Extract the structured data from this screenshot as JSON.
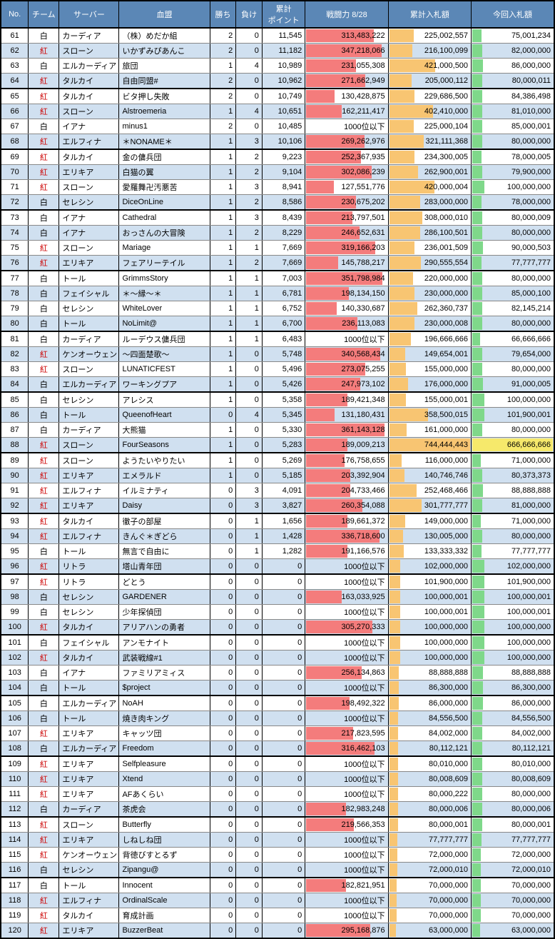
{
  "headers": [
    "No.",
    "チーム",
    "サーバー",
    "血盟",
    "勝ち",
    "負け",
    "累計\nポイント",
    "戦闘力 8/28",
    "累計入札額",
    "今回入札額"
  ],
  "teams": {
    "white": "白",
    "red": "紅"
  },
  "colors": {
    "header_bg": "#5b87b6",
    "even_row": "#d0e0f0",
    "odd_row": "#ffffff",
    "bp_bar": "#f47c7c",
    "cum_bar": "#f8c572",
    "cur_bar": "#7fd88a",
    "cur_hi": "#f6e96b",
    "team_red": "#c00"
  },
  "scales": {
    "bp_max": 380000000,
    "cum_max": 760000000,
    "cur_max": 680000000
  },
  "rows": [
    {
      "no": 61,
      "t": "white",
      "srv": "カーディア",
      "clan": "（株）めだか組",
      "w": 2,
      "l": 0,
      "pt": "11,545",
      "bp": "313,483,222",
      "bpv": 313483222,
      "cum": "225,002,557",
      "cumv": 225002557,
      "cur": "75,001,234",
      "curv": 75001234
    },
    {
      "no": 62,
      "t": "red",
      "srv": "スローン",
      "clan": "いかずみぴあんこ",
      "w": 2,
      "l": 0,
      "pt": "11,182",
      "bp": "347,218,066",
      "bpv": 347218066,
      "cum": "216,100,099",
      "cumv": 216100099,
      "cur": "82,000,000",
      "curv": 82000000
    },
    {
      "no": 63,
      "t": "white",
      "srv": "エルカーディア",
      "clan": "旅団",
      "w": 1,
      "l": 4,
      "pt": "10,989",
      "bp": "231,055,308",
      "bpv": 231055308,
      "cum": "421,000,500",
      "cumv": 421000500,
      "cur": "86,000,000",
      "curv": 86000000
    },
    {
      "no": 64,
      "t": "red",
      "srv": "タルカイ",
      "clan": "自由同盟#",
      "w": 2,
      "l": 0,
      "pt": "10,962",
      "bp": "271,662,949",
      "bpv": 271662949,
      "cum": "205,000,112",
      "cumv": 205000112,
      "cur": "80,000,011",
      "curv": 80000011,
      "sep": true
    },
    {
      "no": 65,
      "t": "red",
      "srv": "タルカイ",
      "clan": "ビタ押し失敗",
      "w": 2,
      "l": 0,
      "pt": "10,749",
      "bp": "130,428,875",
      "bpv": 130428875,
      "cum": "229,686,500",
      "cumv": 229686500,
      "cur": "84,386,498",
      "curv": 84386498
    },
    {
      "no": 66,
      "t": "red",
      "srv": "スローン",
      "clan": "Alstroemeria",
      "w": 1,
      "l": 4,
      "pt": "10,651",
      "bp": "162,211,417",
      "bpv": 162211417,
      "cum": "402,410,000",
      "cumv": 402410000,
      "cur": "81,010,000",
      "curv": 81010000
    },
    {
      "no": 67,
      "t": "white",
      "srv": "イアナ",
      "clan": "minus1",
      "w": 2,
      "l": 0,
      "pt": "10,485",
      "bp": "1000位以下",
      "bpv": 0,
      "cum": "225,000,104",
      "cumv": 225000104,
      "cur": "85,000,001",
      "curv": 85000001
    },
    {
      "no": 68,
      "t": "red",
      "srv": "エルフィナ",
      "clan": "＊NONAME＊",
      "w": 1,
      "l": 3,
      "pt": "10,106",
      "bp": "269,262,976",
      "bpv": 269262976,
      "cum": "321,111,368",
      "cumv": 321111368,
      "cur": "80,000,000",
      "curv": 80000000,
      "sep": true
    },
    {
      "no": 69,
      "t": "red",
      "srv": "タルカイ",
      "clan": "金の傭兵団",
      "w": 1,
      "l": 2,
      "pt": "9,223",
      "bp": "252,367,935",
      "bpv": 252367935,
      "cum": "234,300,005",
      "cumv": 234300005,
      "cur": "78,000,005",
      "curv": 78000005
    },
    {
      "no": 70,
      "t": "red",
      "srv": "エリキア",
      "clan": "白猫の翼",
      "w": 1,
      "l": 2,
      "pt": "9,104",
      "bp": "302,086,239",
      "bpv": 302086239,
      "cum": "262,900,001",
      "cumv": 262900001,
      "cur": "79,900,000",
      "curv": 79900000
    },
    {
      "no": 71,
      "t": "red",
      "srv": "スローン",
      "clan": "愛羅舞卍汚悪苦",
      "w": 1,
      "l": 3,
      "pt": "8,941",
      "bp": "127,551,776",
      "bpv": 127551776,
      "cum": "420,000,004",
      "cumv": 420000004,
      "cur": "100,000,000",
      "curv": 100000000
    },
    {
      "no": 72,
      "t": "white",
      "srv": "セレシン",
      "clan": "DiceOnLine",
      "w": 1,
      "l": 2,
      "pt": "8,586",
      "bp": "230,675,202",
      "bpv": 230675202,
      "cum": "283,000,000",
      "cumv": 283000000,
      "cur": "78,000,000",
      "curv": 78000000,
      "sep": true
    },
    {
      "no": 73,
      "t": "white",
      "srv": "イアナ",
      "clan": "Cathedral",
      "w": 1,
      "l": 3,
      "pt": "8,439",
      "bp": "213,797,501",
      "bpv": 213797501,
      "cum": "308,000,010",
      "cumv": 308000010,
      "cur": "80,000,009",
      "curv": 80000009
    },
    {
      "no": 74,
      "t": "white",
      "srv": "イアナ",
      "clan": "おっさんの大冒険",
      "w": 1,
      "l": 2,
      "pt": "8,229",
      "bp": "246,652,631",
      "bpv": 246652631,
      "cum": "286,100,501",
      "cumv": 286100501,
      "cur": "80,000,000",
      "curv": 80000000
    },
    {
      "no": 75,
      "t": "red",
      "srv": "スローン",
      "clan": "Mariage",
      "w": 1,
      "l": 1,
      "pt": "7,669",
      "bp": "319,166,203",
      "bpv": 319166203,
      "cum": "236,001,509",
      "cumv": 236001509,
      "cur": "90,000,503",
      "curv": 90000503
    },
    {
      "no": 76,
      "t": "red",
      "srv": "エリキア",
      "clan": "フェアリーテイル",
      "w": 1,
      "l": 2,
      "pt": "7,669",
      "bp": "145,788,217",
      "bpv": 145788217,
      "cum": "290,555,554",
      "cumv": 290555554,
      "cur": "77,777,777",
      "curv": 77777777,
      "sep": true
    },
    {
      "no": 77,
      "t": "white",
      "srv": "トール",
      "clan": "GrimmsStory",
      "w": 1,
      "l": 1,
      "pt": "7,003",
      "bp": "351,798,984",
      "bpv": 351798984,
      "cum": "220,000,000",
      "cumv": 220000000,
      "cur": "80,000,000",
      "curv": 80000000
    },
    {
      "no": 78,
      "t": "white",
      "srv": "フェイシャル",
      "clan": "＊～縁～＊",
      "w": 1,
      "l": 1,
      "pt": "6,781",
      "bp": "198,134,150",
      "bpv": 198134150,
      "cum": "230,000,000",
      "cumv": 230000000,
      "cur": "85,000,100",
      "curv": 85000100
    },
    {
      "no": 79,
      "t": "white",
      "srv": "セレシン",
      "clan": "WhiteLover",
      "w": 1,
      "l": 1,
      "pt": "6,752",
      "bp": "140,330,687",
      "bpv": 140330687,
      "cum": "262,360,737",
      "cumv": 262360737,
      "cur": "82,145,214",
      "curv": 82145214
    },
    {
      "no": 80,
      "t": "white",
      "srv": "トール",
      "clan": "NoLimit@",
      "w": 1,
      "l": 1,
      "pt": "6,700",
      "bp": "236,113,083",
      "bpv": 236113083,
      "cum": "230,000,008",
      "cumv": 230000008,
      "cur": "80,000,000",
      "curv": 80000000,
      "sep": true
    },
    {
      "no": 81,
      "t": "white",
      "srv": "カーディア",
      "clan": "ルーデウス傭兵団",
      "w": 1,
      "l": 1,
      "pt": "6,483",
      "bp": "1000位以下",
      "bpv": 0,
      "cum": "196,666,666",
      "cumv": 196666666,
      "cur": "66,666,666",
      "curv": 66666666
    },
    {
      "no": 82,
      "t": "red",
      "srv": "ケンオーウェン",
      "clan": "～四面楚歌～",
      "w": 1,
      "l": 0,
      "pt": "5,748",
      "bp": "340,568,434",
      "bpv": 340568434,
      "cum": "149,654,001",
      "cumv": 149654001,
      "cur": "79,654,000",
      "curv": 79654000
    },
    {
      "no": 83,
      "t": "red",
      "srv": "スローン",
      "clan": "LUNATICFEST",
      "w": 1,
      "l": 0,
      "pt": "5,496",
      "bp": "273,075,255",
      "bpv": 273075255,
      "cum": "155,000,000",
      "cumv": 155000000,
      "cur": "80,000,000",
      "curv": 80000000
    },
    {
      "no": 84,
      "t": "white",
      "srv": "エルカーディア",
      "clan": "ワーキングプア",
      "w": 1,
      "l": 0,
      "pt": "5,426",
      "bp": "247,973,102",
      "bpv": 247973102,
      "cum": "176,000,000",
      "cumv": 176000000,
      "cur": "91,000,005",
      "curv": 91000005,
      "sep": true
    },
    {
      "no": 85,
      "t": "white",
      "srv": "セレシン",
      "clan": "アレシス",
      "w": 1,
      "l": 0,
      "pt": "5,358",
      "bp": "189,421,348",
      "bpv": 189421348,
      "cum": "155,000,001",
      "cumv": 155000001,
      "cur": "100,000,000",
      "curv": 100000000
    },
    {
      "no": 86,
      "t": "white",
      "srv": "トール",
      "clan": "QueenofHeart",
      "w": 0,
      "l": 4,
      "pt": "5,345",
      "bp": "131,180,431",
      "bpv": 131180431,
      "cum": "358,500,015",
      "cumv": 358500015,
      "cur": "101,900,001",
      "curv": 101900001
    },
    {
      "no": 87,
      "t": "white",
      "srv": "カーディア",
      "clan": "大熊猫",
      "w": 1,
      "l": 0,
      "pt": "5,330",
      "bp": "361,143,128",
      "bpv": 361143128,
      "cum": "161,000,000",
      "cumv": 161000000,
      "cur": "80,000,000",
      "curv": 80000000
    },
    {
      "no": 88,
      "t": "red",
      "srv": "スローン",
      "clan": "FourSeasons",
      "w": 1,
      "l": 0,
      "pt": "5,283",
      "bp": "189,009,213",
      "bpv": 189009213,
      "cum": "744,444,443",
      "cumv": 744444443,
      "cur": "666,666,666",
      "curv": 666666666,
      "hi": true,
      "sep": true
    },
    {
      "no": 89,
      "t": "red",
      "srv": "スローン",
      "clan": "ようたいやりたい",
      "w": 1,
      "l": 0,
      "pt": "5,269",
      "bp": "176,758,655",
      "bpv": 176758655,
      "cum": "116,000,000",
      "cumv": 116000000,
      "cur": "71,000,000",
      "curv": 71000000
    },
    {
      "no": 90,
      "t": "red",
      "srv": "エリキア",
      "clan": "エメラルド",
      "w": 1,
      "l": 0,
      "pt": "5,185",
      "bp": "203,392,904",
      "bpv": 203392904,
      "cum": "140,746,746",
      "cumv": 140746746,
      "cur": "80,373,373",
      "curv": 80373373
    },
    {
      "no": 91,
      "t": "red",
      "srv": "エルフィナ",
      "clan": "イルミナティ",
      "w": 0,
      "l": 3,
      "pt": "4,091",
      "bp": "204,733,466",
      "bpv": 204733466,
      "cum": "252,468,466",
      "cumv": 252468466,
      "cur": "88,888,888",
      "curv": 88888888
    },
    {
      "no": 92,
      "t": "red",
      "srv": "エリキア",
      "clan": "Daisy",
      "w": 0,
      "l": 3,
      "pt": "3,827",
      "bp": "260,354,088",
      "bpv": 260354088,
      "cum": "301,777,777",
      "cumv": 301777777,
      "cur": "81,000,000",
      "curv": 81000000,
      "sep": true
    },
    {
      "no": 93,
      "t": "red",
      "srv": "タルカイ",
      "clan": "徹子の部屋",
      "w": 0,
      "l": 1,
      "pt": "1,656",
      "bp": "189,661,372",
      "bpv": 189661372,
      "cum": "149,000,000",
      "cumv": 149000000,
      "cur": "71,000,000",
      "curv": 71000000
    },
    {
      "no": 94,
      "t": "red",
      "srv": "エルフィナ",
      "clan": "きんぐ＊ぎどら",
      "w": 0,
      "l": 1,
      "pt": "1,428",
      "bp": "336,718,600",
      "bpv": 336718600,
      "cum": "130,005,000",
      "cumv": 130005000,
      "cur": "80,000,000",
      "curv": 80000000
    },
    {
      "no": 95,
      "t": "white",
      "srv": "トール",
      "clan": "無言で自由に",
      "w": 0,
      "l": 1,
      "pt": "1,282",
      "bp": "191,166,576",
      "bpv": 191166576,
      "cum": "133,333,332",
      "cumv": 133333332,
      "cur": "77,777,777",
      "curv": 77777777
    },
    {
      "no": 96,
      "t": "red",
      "srv": "リトラ",
      "clan": "塔山青年団",
      "w": 0,
      "l": 0,
      "pt": "0",
      "bp": "1000位以下",
      "bpv": 0,
      "cum": "102,000,000",
      "cumv": 102000000,
      "cur": "102,000,000",
      "curv": 102000000,
      "sep": true
    },
    {
      "no": 97,
      "t": "red",
      "srv": "リトラ",
      "clan": "どとう",
      "w": 0,
      "l": 0,
      "pt": "0",
      "bp": "1000位以下",
      "bpv": 0,
      "cum": "101,900,000",
      "cumv": 101900000,
      "cur": "101,900,000",
      "curv": 101900000
    },
    {
      "no": 98,
      "t": "white",
      "srv": "セレシン",
      "clan": "GARDENER",
      "w": 0,
      "l": 0,
      "pt": "0",
      "bp": "163,033,925",
      "bpv": 163033925,
      "cum": "100,000,001",
      "cumv": 100000001,
      "cur": "100,000,001",
      "curv": 100000001
    },
    {
      "no": 99,
      "t": "white",
      "srv": "セレシン",
      "clan": "少年探偵団",
      "w": 0,
      "l": 0,
      "pt": "0",
      "bp": "1000位以下",
      "bpv": 0,
      "cum": "100,000,001",
      "cumv": 100000001,
      "cur": "100,000,001",
      "curv": 100000001
    },
    {
      "no": 100,
      "t": "red",
      "srv": "タルカイ",
      "clan": "アリアハンの勇者",
      "w": 0,
      "l": 0,
      "pt": "0",
      "bp": "305,270,333",
      "bpv": 305270333,
      "cum": "100,000,000",
      "cumv": 100000000,
      "cur": "100,000,000",
      "curv": 100000000,
      "sep": true
    },
    {
      "no": 101,
      "t": "white",
      "srv": "フェイシャル",
      "clan": "アンモナイト",
      "w": 0,
      "l": 0,
      "pt": "0",
      "bp": "1000位以下",
      "bpv": 0,
      "cum": "100,000,000",
      "cumv": 100000000,
      "cur": "100,000,000",
      "curv": 100000000
    },
    {
      "no": 102,
      "t": "red",
      "srv": "タルカイ",
      "clan": "武装戦線#1",
      "w": 0,
      "l": 0,
      "pt": "0",
      "bp": "1000位以下",
      "bpv": 0,
      "cum": "100,000,000",
      "cumv": 100000000,
      "cur": "100,000,000",
      "curv": 100000000
    },
    {
      "no": 103,
      "t": "white",
      "srv": "イアナ",
      "clan": "ファミリアミィス",
      "w": 0,
      "l": 0,
      "pt": "0",
      "bp": "256,134,863",
      "bpv": 256134863,
      "cum": "88,888,888",
      "cumv": 88888888,
      "cur": "88,888,888",
      "curv": 88888888
    },
    {
      "no": 104,
      "t": "white",
      "srv": "トール",
      "clan": "$project",
      "w": 0,
      "l": 0,
      "pt": "0",
      "bp": "1000位以下",
      "bpv": 0,
      "cum": "86,300,000",
      "cumv": 86300000,
      "cur": "86,300,000",
      "curv": 86300000,
      "sep": true
    },
    {
      "no": 105,
      "t": "white",
      "srv": "エルカーディア",
      "clan": "NoAH",
      "w": 0,
      "l": 0,
      "pt": "0",
      "bp": "198,492,322",
      "bpv": 198492322,
      "cum": "86,000,000",
      "cumv": 86000000,
      "cur": "86,000,000",
      "curv": 86000000
    },
    {
      "no": 106,
      "t": "white",
      "srv": "トール",
      "clan": "焼き肉キング",
      "w": 0,
      "l": 0,
      "pt": "0",
      "bp": "1000位以下",
      "bpv": 0,
      "cum": "84,556,500",
      "cumv": 84556500,
      "cur": "84,556,500",
      "curv": 84556500
    },
    {
      "no": 107,
      "t": "red",
      "srv": "エリキア",
      "clan": "キャッツ団",
      "w": 0,
      "l": 0,
      "pt": "0",
      "bp": "217,823,595",
      "bpv": 217823595,
      "cum": "84,002,000",
      "cumv": 84002000,
      "cur": "84,002,000",
      "curv": 84002000
    },
    {
      "no": 108,
      "t": "white",
      "srv": "エルカーディア",
      "clan": "Freedom",
      "w": 0,
      "l": 0,
      "pt": "0",
      "bp": "316,462,103",
      "bpv": 316462103,
      "cum": "80,112,121",
      "cumv": 80112121,
      "cur": "80,112,121",
      "curv": 80112121,
      "sep": true
    },
    {
      "no": 109,
      "t": "red",
      "srv": "エリキア",
      "clan": "Selfpleasure",
      "w": 0,
      "l": 0,
      "pt": "0",
      "bp": "1000位以下",
      "bpv": 0,
      "cum": "80,010,000",
      "cumv": 80010000,
      "cur": "80,010,000",
      "curv": 80010000
    },
    {
      "no": 110,
      "t": "red",
      "srv": "エリキア",
      "clan": "Xtend",
      "w": 0,
      "l": 0,
      "pt": "0",
      "bp": "1000位以下",
      "bpv": 0,
      "cum": "80,008,609",
      "cumv": 80008609,
      "cur": "80,008,609",
      "curv": 80008609
    },
    {
      "no": 111,
      "t": "red",
      "srv": "エリキア",
      "clan": "AFあくらい",
      "w": 0,
      "l": 0,
      "pt": "0",
      "bp": "1000位以下",
      "bpv": 0,
      "cum": "80,000,222",
      "cumv": 80000222,
      "cur": "80,000,000",
      "curv": 80000000
    },
    {
      "no": 112,
      "t": "white",
      "srv": "カーディア",
      "clan": "茶虎会",
      "w": 0,
      "l": 0,
      "pt": "0",
      "bp": "182,983,248",
      "bpv": 182983248,
      "cum": "80,000,006",
      "cumv": 80000006,
      "cur": "80,000,006",
      "curv": 80000006,
      "sep": true
    },
    {
      "no": 113,
      "t": "red",
      "srv": "スローン",
      "clan": "Butterfly",
      "w": 0,
      "l": 0,
      "pt": "0",
      "bp": "219,566,353",
      "bpv": 219566353,
      "cum": "80,000,001",
      "cumv": 80000001,
      "cur": "80,000,001",
      "curv": 80000001
    },
    {
      "no": 114,
      "t": "red",
      "srv": "エリキア",
      "clan": "しねしね団",
      "w": 0,
      "l": 0,
      "pt": "0",
      "bp": "1000位以下",
      "bpv": 0,
      "cum": "77,777,777",
      "cumv": 77777777,
      "cur": "77,777,777",
      "curv": 77777777
    },
    {
      "no": 115,
      "t": "red",
      "srv": "ケンオーウェン",
      "clan": "背徳びすとるず",
      "w": 0,
      "l": 0,
      "pt": "0",
      "bp": "1000位以下",
      "bpv": 0,
      "cum": "72,000,000",
      "cumv": 72000000,
      "cur": "72,000,000",
      "curv": 72000000
    },
    {
      "no": 116,
      "t": "white",
      "srv": "セレシン",
      "clan": "Zipangu@",
      "w": 0,
      "l": 0,
      "pt": "0",
      "bp": "1000位以下",
      "bpv": 0,
      "cum": "72,000,010",
      "cumv": 72000010,
      "cur": "72,000,010",
      "curv": 72000010,
      "sep": true
    },
    {
      "no": 117,
      "t": "white",
      "srv": "トール",
      "clan": "Innocent",
      "w": 0,
      "l": 0,
      "pt": "0",
      "bp": "182,821,951",
      "bpv": 182821951,
      "cum": "70,000,000",
      "cumv": 70000000,
      "cur": "70,000,000",
      "curv": 70000000
    },
    {
      "no": 118,
      "t": "red",
      "srv": "エルフィナ",
      "clan": "OrdinalScale",
      "w": 0,
      "l": 0,
      "pt": "0",
      "bp": "1000位以下",
      "bpv": 0,
      "cum": "70,000,000",
      "cumv": 70000000,
      "cur": "70,000,000",
      "curv": 70000000
    },
    {
      "no": 119,
      "t": "red",
      "srv": "タルカイ",
      "clan": "育成計画",
      "w": 0,
      "l": 0,
      "pt": "0",
      "bp": "1000位以下",
      "bpv": 0,
      "cum": "70,000,000",
      "cumv": 70000000,
      "cur": "70,000,000",
      "curv": 70000000
    },
    {
      "no": 120,
      "t": "red",
      "srv": "エリキア",
      "clan": "BuzzerBeat",
      "w": 0,
      "l": 0,
      "pt": "0",
      "bp": "295,168,876",
      "bpv": 295168876,
      "cum": "63,000,000",
      "cumv": 63000000,
      "cur": "63,000,000",
      "curv": 63000000,
      "sep": true
    }
  ]
}
